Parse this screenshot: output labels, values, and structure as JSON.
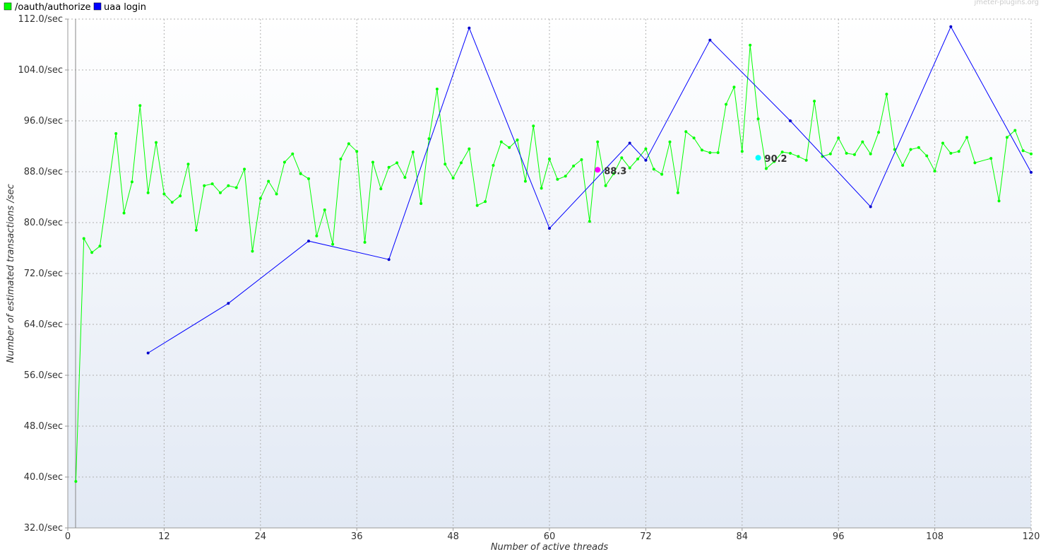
{
  "watermark": "jmeter-plugins.org",
  "legend": [
    {
      "label": "/oauth/authorize",
      "color": "#00ff00"
    },
    {
      "label": "uaa login",
      "color": "#0000ff"
    }
  ],
  "chart_data": {
    "type": "line",
    "title": "",
    "xlabel": "Number of active threads",
    "ylabel": "Number of estimated transactions /sec",
    "xlim": [
      0,
      120
    ],
    "ylim": [
      32,
      112
    ],
    "x_ticks": [
      "0",
      "12",
      "24",
      "36",
      "48",
      "60",
      "72",
      "84",
      "96",
      "108",
      "120"
    ],
    "y_ticks": [
      "32.0/sec",
      "40.0/sec",
      "48.0/sec",
      "56.0/sec",
      "64.0/sec",
      "72.0/sec",
      "80.0/sec",
      "88.0/sec",
      "96.0/sec",
      "104.0/sec",
      "112.0/sec"
    ],
    "grid": true,
    "legend_position": "top-left",
    "series": [
      {
        "name": "/oauth/authorize",
        "color": "#00ff00",
        "marker_color": "#00ff00",
        "points": [
          [
            1,
            39.3
          ],
          [
            2,
            77.5
          ],
          [
            3,
            75.3
          ],
          [
            4,
            76.3
          ],
          [
            6,
            94.0
          ],
          [
            7,
            81.5
          ],
          [
            8,
            86.4
          ],
          [
            9,
            98.4
          ],
          [
            10,
            84.7
          ],
          [
            11,
            92.6
          ],
          [
            12,
            84.5
          ],
          [
            13,
            83.2
          ],
          [
            14,
            84.2
          ],
          [
            15,
            89.2
          ],
          [
            16,
            78.8
          ],
          [
            17,
            85.8
          ],
          [
            18,
            86.1
          ],
          [
            19,
            84.7
          ],
          [
            20,
            85.8
          ],
          [
            21,
            85.5
          ],
          [
            22,
            88.4
          ],
          [
            23,
            75.5
          ],
          [
            24,
            83.8
          ],
          [
            25,
            86.5
          ],
          [
            26,
            84.5
          ],
          [
            27,
            89.5
          ],
          [
            28,
            90.8
          ],
          [
            29,
            87.7
          ],
          [
            30,
            86.9
          ],
          [
            31,
            77.9
          ],
          [
            32,
            82.0
          ],
          [
            33,
            76.6
          ],
          [
            34,
            90.0
          ],
          [
            35,
            92.4
          ],
          [
            36,
            91.2
          ],
          [
            37,
            76.9
          ],
          [
            38,
            89.5
          ],
          [
            39,
            85.3
          ],
          [
            40,
            88.7
          ],
          [
            41,
            89.4
          ],
          [
            42,
            87.1
          ],
          [
            43,
            91.1
          ],
          [
            44,
            83.0
          ],
          [
            45,
            93.2
          ],
          [
            46,
            101.0
          ],
          [
            47,
            89.2
          ],
          [
            48,
            87.0
          ],
          [
            49,
            89.4
          ],
          [
            50,
            91.6
          ],
          [
            51,
            82.7
          ],
          [
            52,
            83.3
          ],
          [
            53,
            89.0
          ],
          [
            54,
            92.7
          ],
          [
            55,
            91.8
          ],
          [
            56,
            93.0
          ],
          [
            57,
            86.5
          ],
          [
            58,
            95.2
          ],
          [
            59,
            85.4
          ],
          [
            60,
            90.0
          ],
          [
            61,
            86.8
          ],
          [
            62,
            87.3
          ],
          [
            63,
            88.9
          ],
          [
            64,
            89.9
          ],
          [
            65,
            80.2
          ],
          [
            66,
            92.7
          ],
          [
            67,
            85.8
          ],
          [
            68,
            87.7
          ],
          [
            69,
            90.2
          ],
          [
            70,
            88.6
          ],
          [
            71,
            90.0
          ],
          [
            72,
            91.6
          ],
          [
            73,
            88.4
          ],
          [
            74,
            87.6
          ],
          [
            75,
            92.7
          ],
          [
            76,
            84.7
          ],
          [
            77,
            94.3
          ],
          [
            78,
            93.3
          ],
          [
            79,
            91.4
          ],
          [
            80,
            91.0
          ],
          [
            81,
            91.0
          ],
          [
            82,
            98.6
          ],
          [
            83,
            101.3
          ],
          [
            84,
            91.2
          ],
          [
            85,
            107.9
          ],
          [
            86,
            96.3
          ],
          [
            87,
            88.5
          ],
          [
            88,
            89.6
          ],
          [
            89,
            91.1
          ],
          [
            90,
            90.9
          ],
          [
            91,
            90.4
          ],
          [
            92,
            89.8
          ],
          [
            93,
            99.1
          ],
          [
            94,
            90.4
          ],
          [
            95,
            90.8
          ],
          [
            96,
            93.3
          ],
          [
            97,
            90.9
          ],
          [
            98,
            90.7
          ],
          [
            99,
            92.7
          ],
          [
            100,
            90.8
          ],
          [
            101,
            94.2
          ],
          [
            102,
            100.2
          ],
          [
            103,
            91.5
          ],
          [
            104,
            89.0
          ],
          [
            105,
            91.5
          ],
          [
            106,
            91.8
          ],
          [
            107,
            90.5
          ],
          [
            108,
            88.1
          ],
          [
            109,
            92.5
          ],
          [
            110,
            90.9
          ],
          [
            111,
            91.2
          ],
          [
            112,
            93.4
          ],
          [
            113,
            89.4
          ],
          [
            115,
            90.1
          ],
          [
            116,
            83.4
          ],
          [
            117,
            93.4
          ],
          [
            118,
            94.5
          ],
          [
            119,
            91.3
          ],
          [
            120,
            90.8
          ]
        ]
      },
      {
        "name": "uaa login",
        "color": "#0000ff",
        "marker_color": "#0000cc",
        "points": [
          [
            10,
            59.5
          ],
          [
            20,
            67.3
          ],
          [
            30,
            77.1
          ],
          [
            40,
            74.2
          ],
          [
            50,
            110.6
          ],
          [
            60,
            79.1
          ],
          [
            70,
            92.5
          ],
          [
            72,
            89.8
          ],
          [
            80,
            108.7
          ],
          [
            90,
            96.0
          ],
          [
            100,
            82.5
          ],
          [
            110,
            110.8
          ],
          [
            120,
            87.9
          ]
        ]
      }
    ],
    "annotations": [
      {
        "x": 66,
        "y": 88.3,
        "text": "88.3",
        "color": "#ff00ff"
      },
      {
        "x": 86,
        "y": 90.2,
        "text": "90.2",
        "color": "#00ffff"
      }
    ]
  }
}
